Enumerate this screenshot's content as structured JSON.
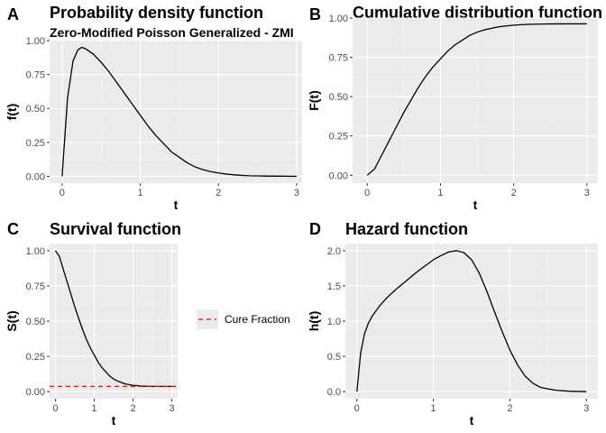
{
  "chart_data": [
    {
      "panel_letter": "A",
      "type": "line",
      "title": "Probability density function",
      "subtitle": "Zero-Modified Poisson Generalized - ZMI",
      "xlabel": "t",
      "ylabel": "f(t)",
      "xlim": [
        -0.16,
        3.07
      ],
      "ylim": [
        -0.05,
        1.0
      ],
      "x_ticks": [
        0,
        1,
        2,
        3
      ],
      "y_ticks": [
        0.0,
        0.25,
        0.5,
        0.75,
        1.0
      ],
      "y_tick_labels": [
        "0.00",
        "0.25",
        "0.50",
        "0.75",
        "1.00"
      ],
      "grid": true,
      "series": [
        {
          "color": "#000000",
          "x": [
            0,
            0.07,
            0.14,
            0.2,
            0.25,
            0.3,
            0.4,
            0.5,
            0.6,
            0.7,
            0.8,
            0.9,
            1.0,
            1.1,
            1.2,
            1.3,
            1.4,
            1.5,
            1.6,
            1.7,
            1.8,
            1.9,
            2.0,
            2.1,
            2.2,
            2.3,
            2.4,
            2.5,
            2.6,
            2.8,
            3.0
          ],
          "y": [
            0.0,
            0.58,
            0.85,
            0.93,
            0.95,
            0.94,
            0.9,
            0.84,
            0.77,
            0.69,
            0.61,
            0.53,
            0.45,
            0.37,
            0.3,
            0.24,
            0.18,
            0.14,
            0.1,
            0.07,
            0.05,
            0.035,
            0.025,
            0.017,
            0.011,
            0.007,
            0.004,
            0.003,
            0.002,
            0.001,
            0.0
          ]
        }
      ]
    },
    {
      "panel_letter": "B",
      "type": "line",
      "title": "Cumulative distribution function",
      "xlabel": "t",
      "ylabel": "F(t)",
      "xlim": [
        -0.2,
        3.15
      ],
      "ylim": [
        -0.05,
        1.0
      ],
      "x_ticks": [
        0,
        1,
        2,
        3
      ],
      "y_ticks": [
        0.0,
        0.25,
        0.5,
        0.75,
        1.0
      ],
      "y_tick_labels": [
        "0.00",
        "0.25",
        "0.50",
        "0.75",
        "1.00"
      ],
      "grid": true,
      "series": [
        {
          "color": "#000000",
          "x": [
            0,
            0.1,
            0.2,
            0.3,
            0.4,
            0.5,
            0.6,
            0.7,
            0.8,
            0.9,
            1.0,
            1.1,
            1.2,
            1.3,
            1.4,
            1.5,
            1.6,
            1.7,
            1.8,
            1.9,
            2.0,
            2.2,
            2.4,
            2.6,
            2.8,
            3.0
          ],
          "y": [
            0.0,
            0.04,
            0.13,
            0.22,
            0.31,
            0.4,
            0.48,
            0.56,
            0.63,
            0.69,
            0.74,
            0.79,
            0.83,
            0.86,
            0.89,
            0.91,
            0.925,
            0.935,
            0.945,
            0.95,
            0.955,
            0.96,
            0.962,
            0.963,
            0.963,
            0.963
          ]
        }
      ]
    },
    {
      "panel_letter": "C",
      "type": "line",
      "title": "Survival function",
      "xlabel": "t",
      "ylabel": "S(t)",
      "xlim": [
        -0.15,
        3.15
      ],
      "ylim": [
        -0.05,
        1.05
      ],
      "x_ticks": [
        0,
        1,
        2,
        3
      ],
      "y_ticks": [
        0.0,
        0.25,
        0.5,
        0.75,
        1.0
      ],
      "y_tick_labels": [
        "0.00",
        "0.25",
        "0.50",
        "0.75",
        "1.00"
      ],
      "grid": true,
      "legend_position": "right",
      "series": [
        {
          "color": "#000000",
          "x": [
            0,
            0.1,
            0.2,
            0.3,
            0.4,
            0.5,
            0.6,
            0.7,
            0.8,
            0.9,
            1.0,
            1.1,
            1.2,
            1.3,
            1.4,
            1.5,
            1.6,
            1.7,
            1.8,
            1.9,
            2.0,
            2.2,
            2.4,
            2.6,
            2.8,
            3.0
          ],
          "y": [
            1.0,
            0.96,
            0.87,
            0.78,
            0.69,
            0.6,
            0.52,
            0.44,
            0.37,
            0.31,
            0.26,
            0.21,
            0.17,
            0.14,
            0.11,
            0.09,
            0.075,
            0.065,
            0.055,
            0.05,
            0.045,
            0.04,
            0.038,
            0.037,
            0.037,
            0.037
          ]
        },
        {
          "name": "Cure Fraction",
          "color": "#ff0000",
          "style": "dashed",
          "hline": 0.037
        }
      ]
    },
    {
      "panel_letter": "D",
      "type": "line",
      "title": "Hazard function",
      "xlabel": "t",
      "ylabel": "h(t)",
      "xlim": [
        -0.15,
        3.15
      ],
      "ylim": [
        -0.1,
        2.1
      ],
      "x_ticks": [
        0,
        1,
        2,
        3
      ],
      "y_ticks": [
        0.0,
        0.5,
        1.0,
        1.5,
        2.0
      ],
      "y_tick_labels": [
        "0.0",
        "0.5",
        "1.0",
        "1.5",
        "2.0"
      ],
      "grid": true,
      "series": [
        {
          "color": "#000000",
          "x": [
            0,
            0.05,
            0.1,
            0.15,
            0.2,
            0.3,
            0.4,
            0.5,
            0.6,
            0.7,
            0.8,
            0.9,
            1.0,
            1.1,
            1.2,
            1.3,
            1.4,
            1.5,
            1.6,
            1.7,
            1.8,
            1.9,
            2.0,
            2.1,
            2.2,
            2.3,
            2.4,
            2.6,
            2.8,
            3.0
          ],
          "y": [
            0.0,
            0.55,
            0.82,
            0.97,
            1.07,
            1.22,
            1.34,
            1.44,
            1.53,
            1.62,
            1.71,
            1.79,
            1.87,
            1.93,
            1.98,
            2.0,
            1.97,
            1.87,
            1.68,
            1.42,
            1.13,
            0.85,
            0.59,
            0.38,
            0.22,
            0.12,
            0.06,
            0.02,
            0.005,
            0.0
          ]
        }
      ]
    }
  ]
}
